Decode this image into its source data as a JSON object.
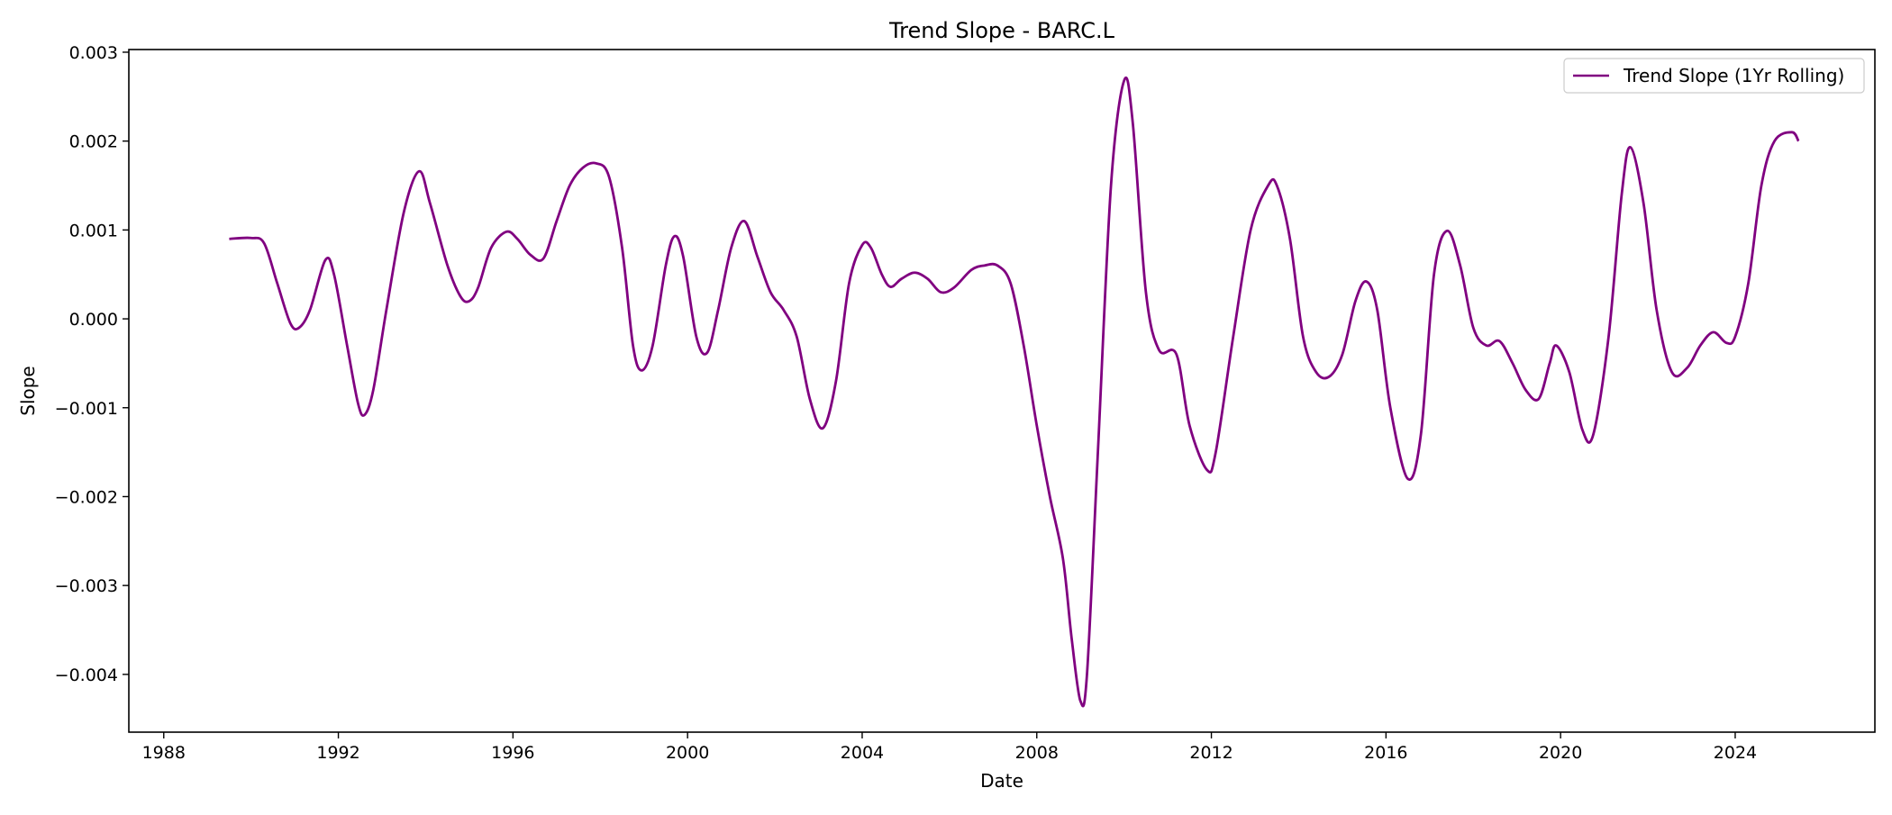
{
  "chart_data": {
    "type": "line",
    "title": "Trend Slope - BARC.L",
    "xlabel": "Date",
    "ylabel": "Slope",
    "xlim": [
      1987.2,
      2027.2
    ],
    "ylim": [
      -0.00465,
      0.00303
    ],
    "x_ticks": [
      1988,
      1992,
      1996,
      2000,
      2004,
      2008,
      2012,
      2016,
      2020,
      2024
    ],
    "x_tick_labels": [
      "1988",
      "1992",
      "1996",
      "2000",
      "2004",
      "2008",
      "2012",
      "2016",
      "2020",
      "2024"
    ],
    "y_ticks": [
      0.003,
      0.002,
      0.001,
      0.0,
      -0.001,
      -0.002,
      -0.003,
      -0.004
    ],
    "y_tick_labels": [
      "0.003",
      "0.002",
      "0.001",
      "0.000",
      "−0.001",
      "−0.002",
      "−0.003",
      "−0.004"
    ],
    "grid": false,
    "legend_position": "top-right",
    "series": [
      {
        "name": "Trend Slope (1Yr Rolling)",
        "color": "#800080",
        "points": [
          [
            1989.5,
            0.0009
          ],
          [
            1990.0,
            0.00091
          ],
          [
            1990.3,
            0.00085
          ],
          [
            1990.6,
            0.0004
          ],
          [
            1990.9,
            -5e-05
          ],
          [
            1991.1,
            -0.0001
          ],
          [
            1991.35,
            0.0001
          ],
          [
            1991.7,
            0.00066
          ],
          [
            1991.9,
            0.0005
          ],
          [
            1992.2,
            -0.0003
          ],
          [
            1992.45,
            -0.00095
          ],
          [
            1992.6,
            -0.00108
          ],
          [
            1992.8,
            -0.0008
          ],
          [
            1993.1,
            0.0001
          ],
          [
            1993.5,
            0.0012
          ],
          [
            1993.85,
            0.00166
          ],
          [
            1994.1,
            0.0013
          ],
          [
            1994.5,
            0.0006
          ],
          [
            1994.8,
            0.00025
          ],
          [
            1995.0,
            0.0002
          ],
          [
            1995.2,
            0.00035
          ],
          [
            1995.5,
            0.0008
          ],
          [
            1995.85,
            0.00098
          ],
          [
            1996.1,
            0.0009
          ],
          [
            1996.4,
            0.00072
          ],
          [
            1996.7,
            0.00068
          ],
          [
            1997.0,
            0.0011
          ],
          [
            1997.3,
            0.0015
          ],
          [
            1997.6,
            0.0017
          ],
          [
            1997.9,
            0.00175
          ],
          [
            1998.2,
            0.0016
          ],
          [
            1998.5,
            0.0008
          ],
          [
            1998.75,
            -0.0003
          ],
          [
            1998.95,
            -0.00058
          ],
          [
            1999.2,
            -0.0003
          ],
          [
            1999.5,
            0.0006
          ],
          [
            1999.7,
            0.00093
          ],
          [
            1999.9,
            0.0007
          ],
          [
            2000.2,
            -0.0002
          ],
          [
            2000.45,
            -0.00038
          ],
          [
            2000.7,
            0.0001
          ],
          [
            2001.0,
            0.0008
          ],
          [
            2001.3,
            0.0011
          ],
          [
            2001.6,
            0.0007
          ],
          [
            2001.9,
            0.0003
          ],
          [
            2002.2,
            0.0001
          ],
          [
            2002.5,
            -0.0002
          ],
          [
            2002.8,
            -0.0009
          ],
          [
            2003.1,
            -0.00123
          ],
          [
            2003.4,
            -0.0007
          ],
          [
            2003.7,
            0.0004
          ],
          [
            2004.0,
            0.00083
          ],
          [
            2004.2,
            0.0008
          ],
          [
            2004.45,
            0.0005
          ],
          [
            2004.65,
            0.00036
          ],
          [
            2004.9,
            0.00045
          ],
          [
            2005.2,
            0.00052
          ],
          [
            2005.5,
            0.00045
          ],
          [
            2005.8,
            0.0003
          ],
          [
            2006.1,
            0.00035
          ],
          [
            2006.5,
            0.00055
          ],
          [
            2006.8,
            0.0006
          ],
          [
            2007.1,
            0.0006
          ],
          [
            2007.4,
            0.0004
          ],
          [
            2007.7,
            -0.0003
          ],
          [
            2008.0,
            -0.0012
          ],
          [
            2008.3,
            -0.002
          ],
          [
            2008.6,
            -0.0027
          ],
          [
            2008.8,
            -0.0036
          ],
          [
            2009.0,
            -0.0043
          ],
          [
            2009.15,
            -0.004
          ],
          [
            2009.4,
            -0.0015
          ],
          [
            2009.7,
            0.0015
          ],
          [
            2010.0,
            0.00268
          ],
          [
            2010.2,
            0.0022
          ],
          [
            2010.5,
            0.0003
          ],
          [
            2010.8,
            -0.00035
          ],
          [
            2011.2,
            -0.0004
          ],
          [
            2011.5,
            -0.0012
          ],
          [
            2011.9,
            -0.0017
          ],
          [
            2012.1,
            -0.0015
          ],
          [
            2012.5,
            -0.0002
          ],
          [
            2012.9,
            0.001
          ],
          [
            2013.3,
            0.0015
          ],
          [
            2013.5,
            0.0015
          ],
          [
            2013.8,
            0.0009
          ],
          [
            2014.1,
            -0.0002
          ],
          [
            2014.4,
            -0.0006
          ],
          [
            2014.7,
            -0.00065
          ],
          [
            2015.0,
            -0.0004
          ],
          [
            2015.3,
            0.0002
          ],
          [
            2015.55,
            0.00042
          ],
          [
            2015.8,
            0.0001
          ],
          [
            2016.1,
            -0.001
          ],
          [
            2016.5,
            -0.0018
          ],
          [
            2016.8,
            -0.0013
          ],
          [
            2017.1,
            0.0005
          ],
          [
            2017.4,
            0.00099
          ],
          [
            2017.7,
            0.0006
          ],
          [
            2018.0,
            -0.0001
          ],
          [
            2018.3,
            -0.0003
          ],
          [
            2018.6,
            -0.00025
          ],
          [
            2018.9,
            -0.0005
          ],
          [
            2019.2,
            -0.0008
          ],
          [
            2019.5,
            -0.0009
          ],
          [
            2019.75,
            -0.0005
          ],
          [
            2019.9,
            -0.0003
          ],
          [
            2020.2,
            -0.0006
          ],
          [
            2020.5,
            -0.00125
          ],
          [
            2020.75,
            -0.0013
          ],
          [
            2021.1,
            -0.0002
          ],
          [
            2021.4,
            0.0014
          ],
          [
            2021.6,
            0.00193
          ],
          [
            2021.9,
            0.0013
          ],
          [
            2022.2,
            0.0001
          ],
          [
            2022.55,
            -0.0006
          ],
          [
            2022.9,
            -0.00055
          ],
          [
            2023.2,
            -0.0003
          ],
          [
            2023.5,
            -0.00015
          ],
          [
            2023.8,
            -0.00027
          ],
          [
            2024.0,
            -0.0002
          ],
          [
            2024.3,
            0.0004
          ],
          [
            2024.6,
            0.0015
          ],
          [
            2024.9,
            0.002
          ],
          [
            2025.3,
            0.0021
          ],
          [
            2025.45,
            0.002
          ]
        ]
      }
    ]
  }
}
